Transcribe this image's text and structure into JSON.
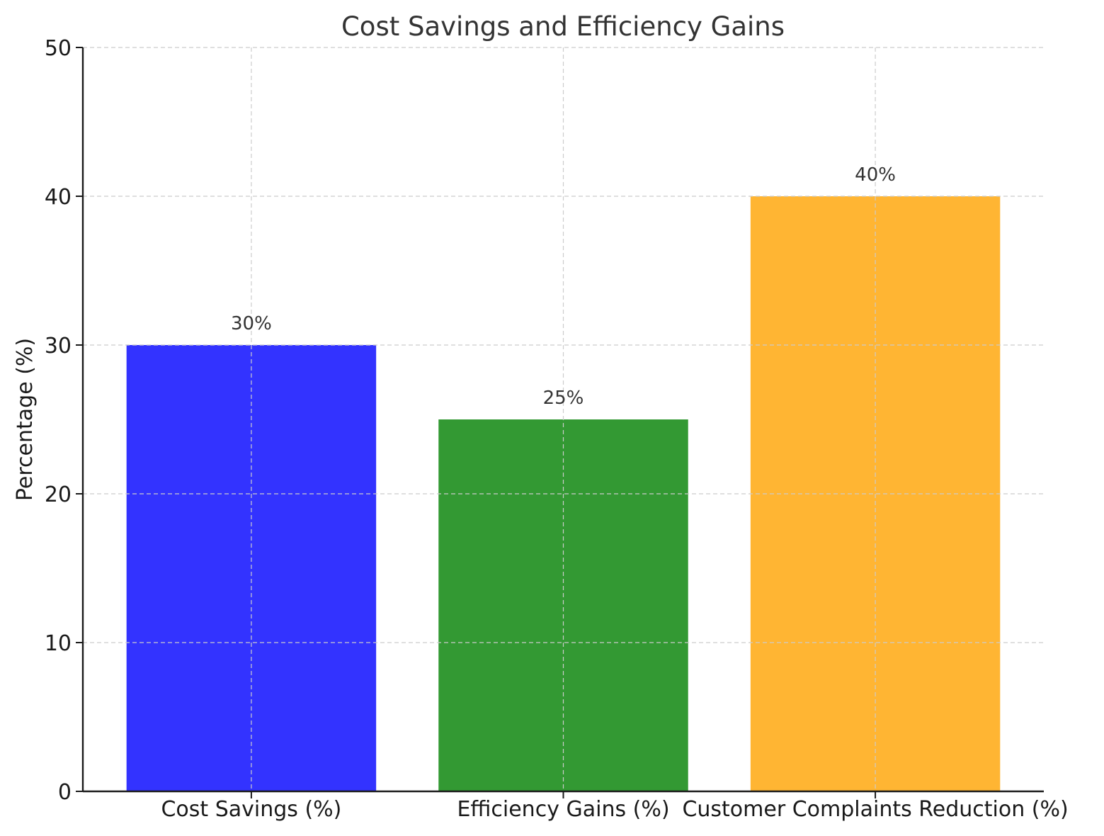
{
  "chart_data": {
    "type": "bar",
    "title": "Cost Savings and Efficiency Gains",
    "xlabel": "",
    "ylabel": "Percentage (%)",
    "categories": [
      "Cost Savings (%)",
      "Efficiency Gains (%)",
      "Customer Complaints Reduction (%)"
    ],
    "values": [
      30,
      25,
      40
    ],
    "value_labels": [
      "30%",
      "25%",
      "40%"
    ],
    "colors": [
      "#3333ff",
      "#339933",
      "#ffb533"
    ],
    "ylim": [
      0,
      50
    ],
    "yticks": [
      0,
      10,
      20,
      30,
      40,
      50
    ],
    "grid": true
  }
}
